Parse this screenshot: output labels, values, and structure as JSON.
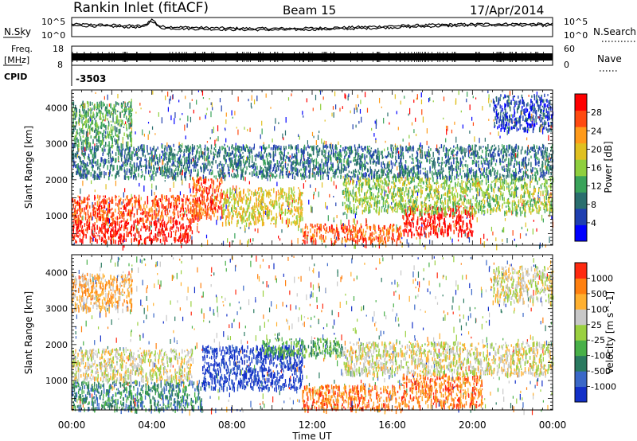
{
  "header": {
    "station": "Rankin Inlet (fitACF)",
    "beam": "Beam 15",
    "date": "17/Apr/2014"
  },
  "noise_panel": {
    "left_label": "N.Sky",
    "right_label": "N.Search",
    "axis_ticks": [
      "10^5",
      "10^0"
    ]
  },
  "freq_panel": {
    "left_label_1": "Freq.",
    "left_label_2": "[MHz]",
    "left_ticks": [
      "18",
      "8"
    ],
    "right_label": "Nave",
    "right_ticks": [
      "60",
      "0"
    ]
  },
  "cpid_panel": {
    "label": "CPID",
    "value": "-3503"
  },
  "chart_data": [
    {
      "type": "heatmap",
      "name": "power",
      "ylabel": "Slant Range [km]",
      "ylim": [
        180,
        4500
      ],
      "yticks": [
        1000,
        2000,
        3000,
        4000
      ],
      "xlim_hours": [
        0,
        24
      ],
      "colorbar_label": "Power [dB]",
      "colorbar_ticks": [
        "28",
        "24",
        "20",
        "16",
        "12",
        "8",
        "4"
      ],
      "colors": [
        "#0000ff",
        "#1f3fb0",
        "#2a6e6e",
        "#3aa35a",
        "#8fcf3e",
        "#e0c020",
        "#ff9a1a",
        "#ff4a10",
        "#ff0000"
      ],
      "bands": [
        {
          "t0": 0.0,
          "t1": 6.0,
          "r0": 300,
          "r1": 900,
          "level": 8
        },
        {
          "t0": 0.0,
          "t1": 6.5,
          "r0": 900,
          "r1": 1600,
          "level": 7
        },
        {
          "t0": 6.0,
          "t1": 7.5,
          "r0": 1000,
          "r1": 2100,
          "level": 7
        },
        {
          "t0": 7.5,
          "t1": 11.5,
          "r0": 800,
          "r1": 1800,
          "level": 5
        },
        {
          "t0": 11.5,
          "t1": 16.5,
          "r0": 300,
          "r1": 800,
          "level": 7
        },
        {
          "t0": 16.5,
          "t1": 20.0,
          "r0": 500,
          "r1": 1300,
          "level": 8
        },
        {
          "t0": 13.5,
          "t1": 24.0,
          "r0": 1100,
          "r1": 2100,
          "level": 4
        },
        {
          "t0": 0.0,
          "t1": 24.0,
          "r0": 2100,
          "r1": 3000,
          "level": 2
        },
        {
          "t0": 21.0,
          "t1": 24.0,
          "r0": 3400,
          "r1": 4400,
          "level": 1
        },
        {
          "t0": 0.0,
          "t1": 3.0,
          "r0": 3000,
          "r1": 4200,
          "level": 3
        }
      ]
    },
    {
      "type": "heatmap",
      "name": "velocity",
      "ylabel": "Slant Range [km]",
      "ylim": [
        180,
        4500
      ],
      "yticks": [
        1000,
        2000,
        3000,
        4000
      ],
      "xlim_hours": [
        0,
        24
      ],
      "xlabel": "Time UT",
      "xticks": [
        "00:00",
        "04:00",
        "08:00",
        "12:00",
        "16:00",
        "20:00",
        "00:00"
      ],
      "colorbar_label": "Velocity [m s^-1]",
      "colorbar_ticks": [
        "1000",
        "500",
        "100",
        "25",
        "-25",
        "-100",
        "-500",
        "-1000"
      ],
      "colors": [
        "#1230c8",
        "#3a68c8",
        "#2a7a60",
        "#48b048",
        "#9ad040",
        "#c8c8c8",
        "#ffb030",
        "#ff8010",
        "#ff2a10"
      ],
      "bands": [
        {
          "t0": 0.0,
          "t1": 6.5,
          "r0": 200,
          "r1": 1000,
          "level": 2
        },
        {
          "t0": 0.0,
          "t1": 6.0,
          "r0": 1000,
          "r1": 1900,
          "level": 5
        },
        {
          "t0": 6.5,
          "t1": 11.5,
          "r0": 800,
          "r1": 2000,
          "level": 0
        },
        {
          "t0": 11.5,
          "t1": 16.5,
          "r0": 200,
          "r1": 900,
          "level": 7
        },
        {
          "t0": 16.5,
          "t1": 20.5,
          "r0": 300,
          "r1": 1200,
          "level": 7
        },
        {
          "t0": 13.5,
          "t1": 24.0,
          "r0": 1200,
          "r1": 2100,
          "level": 5
        },
        {
          "t0": 9.5,
          "t1": 13.5,
          "r0": 1700,
          "r1": 2200,
          "level": 3
        },
        {
          "t0": 0.0,
          "t1": 3.0,
          "r0": 3000,
          "r1": 4000,
          "level": 6
        },
        {
          "t0": 21.0,
          "t1": 24.0,
          "r0": 3200,
          "r1": 4200,
          "level": 5
        }
      ]
    }
  ]
}
